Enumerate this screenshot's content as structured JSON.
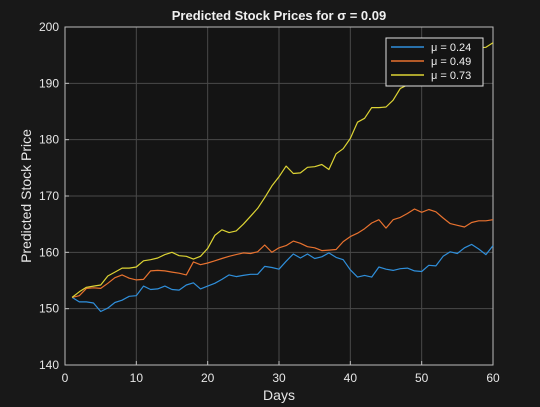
{
  "chart_data": {
    "type": "line",
    "title": "Predicted Stock Prices for σ = 0.09",
    "xlabel": "Days",
    "ylabel": "Predicted Stock Price",
    "xlim": [
      0,
      60
    ],
    "ylim": [
      140,
      200
    ],
    "xticks": [
      0,
      10,
      20,
      30,
      40,
      50,
      60
    ],
    "yticks": [
      140,
      150,
      160,
      170,
      180,
      190,
      200
    ],
    "grid": true,
    "legend_position": "top-right",
    "series": [
      {
        "name": "μ = 0.24",
        "color": "#2f8fdb",
        "x": [
          1,
          2,
          3,
          4,
          5,
          6,
          7,
          8,
          9,
          10,
          11,
          12,
          13,
          14,
          15,
          16,
          17,
          18,
          19,
          20,
          21,
          22,
          23,
          24,
          25,
          26,
          27,
          28,
          29,
          30,
          31,
          32,
          33,
          34,
          35,
          36,
          37,
          38,
          39,
          40,
          41,
          42,
          43,
          44,
          45,
          46,
          47,
          48,
          49,
          50,
          51,
          52,
          53,
          54,
          55,
          56,
          57,
          58,
          59,
          60
        ],
        "y": [
          152,
          151.2,
          151.2,
          151,
          149.5,
          150.1,
          151.1,
          151.5,
          152.2,
          152.3,
          154,
          153.4,
          153.5,
          154,
          153.4,
          153.3,
          154.2,
          154.6,
          153.5,
          154,
          154.5,
          155.2,
          156,
          155.7,
          155.9,
          156.1,
          156.1,
          157.5,
          157.3,
          157,
          158.4,
          159.7,
          159,
          159.7,
          158.9,
          159.2,
          159.9,
          159.1,
          158.7,
          156.9,
          155.6,
          155.9,
          155.6,
          157.4,
          157,
          156.8,
          157.1,
          157.2,
          156.7,
          156.6,
          157.7,
          157.6,
          159.3,
          160.1,
          159.8,
          160.8,
          161.4,
          160.6,
          159.6,
          161.2
        ]
      },
      {
        "name": "μ = 0.49",
        "color": "#e8722f",
        "x": [
          1,
          2,
          3,
          4,
          5,
          6,
          7,
          8,
          9,
          10,
          11,
          12,
          13,
          14,
          15,
          16,
          17,
          18,
          19,
          20,
          21,
          22,
          23,
          24,
          25,
          26,
          27,
          28,
          29,
          30,
          31,
          32,
          33,
          34,
          35,
          36,
          37,
          38,
          39,
          40,
          41,
          42,
          43,
          44,
          45,
          46,
          47,
          48,
          49,
          50,
          51,
          52,
          53,
          54,
          55,
          56,
          57,
          58,
          59,
          60
        ],
        "y": [
          152,
          152.3,
          153.6,
          153.7,
          153.6,
          154.5,
          155.5,
          156,
          155.4,
          155.1,
          155.2,
          156.7,
          156.8,
          156.7,
          156.5,
          156.3,
          156,
          158.3,
          157.8,
          158.1,
          158.5,
          158.9,
          159.3,
          159.6,
          159.9,
          159.8,
          160.1,
          161.3,
          160,
          160.8,
          161.2,
          162,
          161.6,
          161,
          160.8,
          160.3,
          160.4,
          160.5,
          161.9,
          162.8,
          163.4,
          164.2,
          165.2,
          165.8,
          164.3,
          165.8,
          166.2,
          166.9,
          167.7,
          167.1,
          167.6,
          167.2,
          166.1,
          165.1,
          164.8,
          164.5,
          165.3,
          165.6,
          165.6,
          165.8
        ]
      },
      {
        "name": "μ = 0.73",
        "color": "#ddd434",
        "x": [
          1,
          2,
          3,
          4,
          5,
          6,
          7,
          8,
          9,
          10,
          11,
          12,
          13,
          14,
          15,
          16,
          17,
          18,
          19,
          20,
          21,
          22,
          23,
          24,
          25,
          26,
          27,
          28,
          29,
          30,
          31,
          32,
          33,
          34,
          35,
          36,
          37,
          38,
          39,
          40,
          41,
          42,
          43,
          44,
          45,
          46,
          47,
          48,
          49,
          50,
          51,
          52,
          53,
          54,
          55,
          56,
          57,
          58,
          59,
          60
        ],
        "y": [
          152,
          153,
          153.8,
          154,
          154.2,
          155.8,
          156.5,
          157.2,
          157.2,
          157.4,
          158.5,
          158.7,
          159,
          159.6,
          160,
          159.4,
          159.3,
          158.8,
          159.3,
          160.7,
          163,
          164,
          163.5,
          163.8,
          165,
          166.4,
          167.8,
          169.7,
          171.8,
          173.4,
          175.3,
          174,
          174.1,
          175.1,
          175.2,
          175.6,
          174.7,
          177.5,
          178.4,
          180.2,
          183.1,
          183.8,
          185.7,
          185.7,
          185.8,
          187,
          189.1,
          189.7,
          191.4,
          192.5,
          193.2,
          193.8,
          194.3,
          195.2,
          196,
          196.2,
          196.6,
          196.3,
          196.4,
          197.2
        ]
      }
    ]
  }
}
